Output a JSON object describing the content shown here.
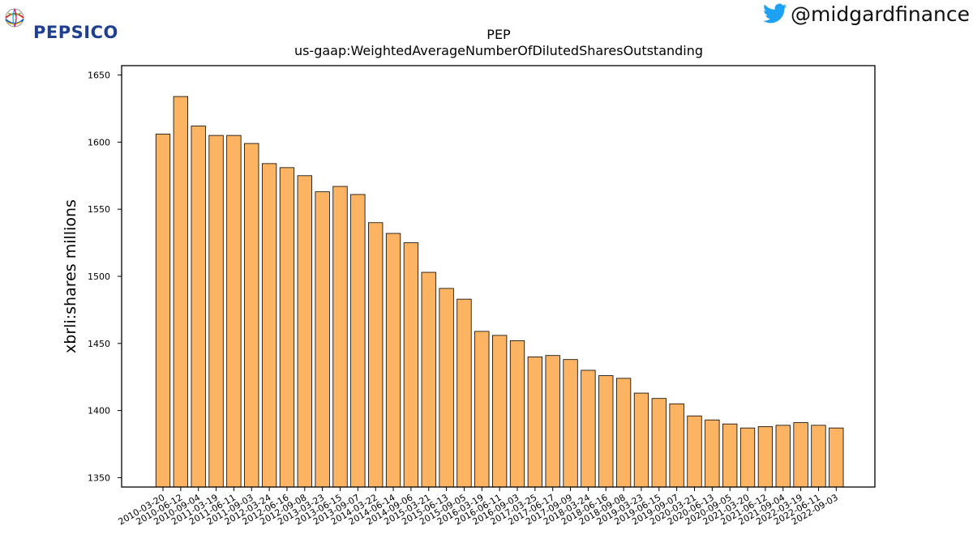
{
  "brand": {
    "name": "PEPSICO",
    "logo_icon": "pepsico-globe-icon"
  },
  "social": {
    "handle": "@midgardfinance",
    "icon": "twitter-bird-icon",
    "icon_color": "#1da1f2"
  },
  "chart_data": {
    "type": "bar",
    "title": "PEP",
    "subtitle": "us-gaap:WeightedAverageNumberOfDilutedSharesOutstanding",
    "xlabel": "",
    "ylabel": "xbrli:shares millions",
    "ylim": [
      1343,
      1657
    ],
    "yticks": [
      1350,
      1400,
      1450,
      1500,
      1550,
      1600,
      1650
    ],
    "grid": false,
    "bar_color": "#fdb462",
    "bar_edge_color": "#000000",
    "categories": [
      "2010-03-20",
      "2010-06-12",
      "2010-09-04",
      "2011-03-19",
      "2011-06-11",
      "2011-09-03",
      "2012-03-24",
      "2012-06-16",
      "2012-09-08",
      "2013-03-23",
      "2013-06-15",
      "2013-09-07",
      "2014-03-22",
      "2014-06-14",
      "2014-09-06",
      "2015-03-21",
      "2015-06-13",
      "2015-09-05",
      "2016-03-19",
      "2016-06-11",
      "2016-09-03",
      "2017-03-25",
      "2017-06-17",
      "2017-09-09",
      "2018-03-24",
      "2018-06-16",
      "2018-09-08",
      "2019-03-23",
      "2019-06-15",
      "2019-09-07",
      "2020-03-21",
      "2020-06-13",
      "2020-09-05",
      "2021-03-20",
      "2021-06-12",
      "2021-09-04",
      "2022-03-19",
      "2022-06-11",
      "2022-09-03"
    ],
    "values": [
      1606,
      1634,
      1612,
      1605,
      1605,
      1599,
      1584,
      1581,
      1575,
      1563,
      1567,
      1561,
      1540,
      1532,
      1525,
      1503,
      1491,
      1483,
      1459,
      1456,
      1452,
      1440,
      1441,
      1438,
      1430,
      1426,
      1424,
      1413,
      1409,
      1405,
      1396,
      1393,
      1390,
      1387,
      1388,
      1389,
      1391,
      1389,
      1387
    ]
  }
}
